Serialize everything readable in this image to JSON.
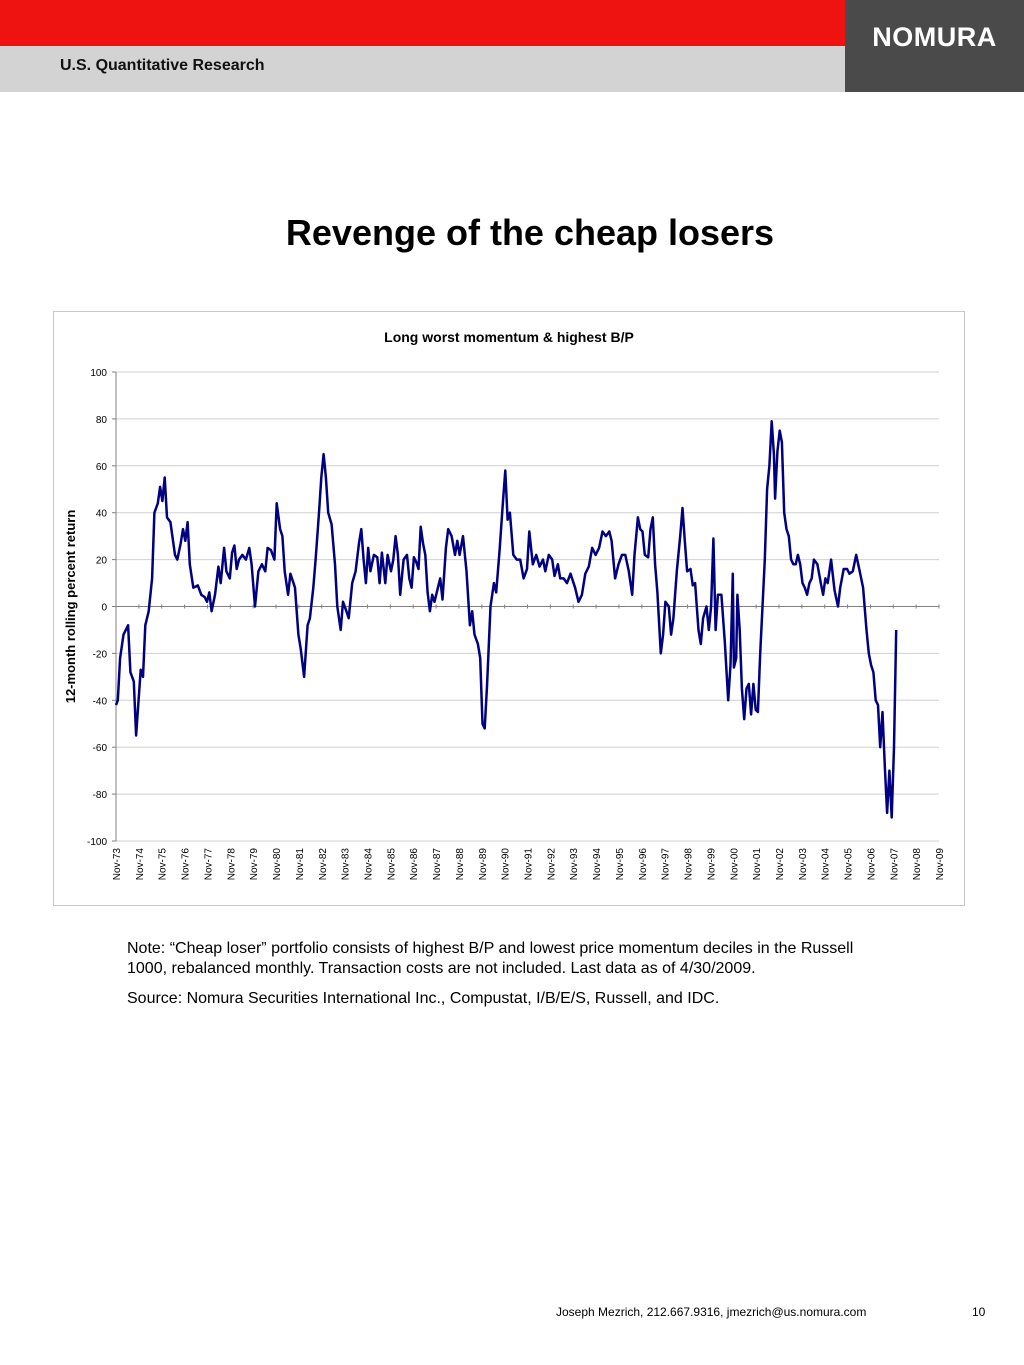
{
  "header": {
    "department": "U.S. Quantitative Research",
    "logo": "NOMURA",
    "colors": {
      "red": "#ee1310",
      "grey": "#d3d3d3",
      "logo_bg": "#4a4a4a"
    }
  },
  "page_title": "Revenge of the cheap losers",
  "chart_data": {
    "type": "line",
    "title": "Long worst momentum & highest B/P",
    "xlabel": "",
    "ylabel": "12-month rolling percent return",
    "ylim": [
      -100,
      100
    ],
    "yticks": [
      100,
      80,
      60,
      40,
      20,
      0,
      -20,
      -40,
      -60,
      -80,
      -100
    ],
    "grid": true,
    "legend": "none",
    "line_color": "#000080",
    "categories": [
      "Nov-73",
      "Nov-74",
      "Nov-75",
      "Nov-76",
      "Nov-77",
      "Nov-78",
      "Nov-79",
      "Nov-80",
      "Nov-81",
      "Nov-82",
      "Nov-83",
      "Nov-84",
      "Nov-85",
      "Nov-86",
      "Nov-87",
      "Nov-88",
      "Nov-89",
      "Nov-90",
      "Nov-91",
      "Nov-92",
      "Nov-93",
      "Nov-94",
      "Nov-95",
      "Nov-96",
      "Nov-97",
      "Nov-98",
      "Nov-99",
      "Nov-00",
      "Nov-01",
      "Nov-02",
      "Nov-03",
      "Nov-04",
      "Nov-05",
      "Nov-06",
      "Nov-07",
      "Nov-08",
      "Nov-09"
    ],
    "series": [
      {
        "name": "",
        "points": [
          [
            1973.92,
            -42
          ],
          [
            1974.0,
            -40
          ],
          [
            1974.1,
            -22
          ],
          [
            1974.25,
            -12
          ],
          [
            1974.45,
            -8
          ],
          [
            1974.55,
            -28
          ],
          [
            1974.7,
            -32
          ],
          [
            1974.8,
            -55
          ],
          [
            1975.0,
            -27
          ],
          [
            1975.1,
            -30
          ],
          [
            1975.2,
            -8
          ],
          [
            1975.35,
            -2
          ],
          [
            1975.5,
            12
          ],
          [
            1975.6,
            40
          ],
          [
            1975.75,
            44
          ],
          [
            1975.85,
            51
          ],
          [
            1975.95,
            45
          ],
          [
            1976.05,
            55
          ],
          [
            1976.15,
            38
          ],
          [
            1976.3,
            36
          ],
          [
            1976.5,
            22
          ],
          [
            1976.6,
            20
          ],
          [
            1976.75,
            27
          ],
          [
            1976.85,
            33
          ],
          [
            1976.95,
            28
          ],
          [
            1977.05,
            36
          ],
          [
            1977.15,
            18
          ],
          [
            1977.3,
            8
          ],
          [
            1977.5,
            9
          ],
          [
            1977.65,
            5
          ],
          [
            1977.8,
            4
          ],
          [
            1977.9,
            2
          ],
          [
            1978.0,
            6
          ],
          [
            1978.1,
            -2
          ],
          [
            1978.25,
            5
          ],
          [
            1978.4,
            17
          ],
          [
            1978.5,
            10
          ],
          [
            1978.65,
            25
          ],
          [
            1978.75,
            15
          ],
          [
            1978.9,
            12
          ],
          [
            1979.0,
            23
          ],
          [
            1979.1,
            26
          ],
          [
            1979.2,
            16
          ],
          [
            1979.3,
            20
          ],
          [
            1979.45,
            22
          ],
          [
            1979.6,
            20
          ],
          [
            1979.75,
            25
          ],
          [
            1979.85,
            18
          ],
          [
            1980.0,
            0
          ],
          [
            1980.15,
            15
          ],
          [
            1980.3,
            18
          ],
          [
            1980.45,
            15
          ],
          [
            1980.55,
            25
          ],
          [
            1980.7,
            24
          ],
          [
            1980.85,
            20
          ],
          [
            1980.95,
            44
          ],
          [
            1981.1,
            33
          ],
          [
            1981.2,
            30
          ],
          [
            1981.3,
            15
          ],
          [
            1981.45,
            5
          ],
          [
            1981.55,
            14
          ],
          [
            1981.75,
            8
          ],
          [
            1981.9,
            -12
          ],
          [
            1982.0,
            -18
          ],
          [
            1982.15,
            -30
          ],
          [
            1982.3,
            -8
          ],
          [
            1982.4,
            -5
          ],
          [
            1982.55,
            8
          ],
          [
            1982.65,
            20
          ],
          [
            1982.8,
            40
          ],
          [
            1982.9,
            55
          ],
          [
            1983.0,
            65
          ],
          [
            1983.1,
            55
          ],
          [
            1983.2,
            40
          ],
          [
            1983.35,
            35
          ],
          [
            1983.5,
            18
          ],
          [
            1983.6,
            0
          ],
          [
            1983.75,
            -10
          ],
          [
            1983.85,
            2
          ],
          [
            1984.0,
            -2
          ],
          [
            1984.1,
            -5
          ],
          [
            1984.25,
            10
          ],
          [
            1984.4,
            15
          ],
          [
            1984.55,
            27
          ],
          [
            1984.65,
            33
          ],
          [
            1984.75,
            20
          ],
          [
            1984.85,
            10
          ],
          [
            1984.95,
            25
          ],
          [
            1985.05,
            15
          ],
          [
            1985.2,
            22
          ],
          [
            1985.35,
            21
          ],
          [
            1985.45,
            10
          ],
          [
            1985.55,
            23
          ],
          [
            1985.7,
            10
          ],
          [
            1985.8,
            22
          ],
          [
            1985.95,
            15
          ],
          [
            1986.05,
            20
          ],
          [
            1986.15,
            30
          ],
          [
            1986.25,
            22
          ],
          [
            1986.35,
            5
          ],
          [
            1986.5,
            20
          ],
          [
            1986.65,
            22
          ],
          [
            1986.75,
            12
          ],
          [
            1986.85,
            8
          ],
          [
            1986.95,
            21
          ],
          [
            1987.05,
            19
          ],
          [
            1987.15,
            16
          ],
          [
            1987.25,
            34
          ],
          [
            1987.35,
            27
          ],
          [
            1987.45,
            22
          ],
          [
            1987.55,
            6
          ],
          [
            1987.65,
            -2
          ],
          [
            1987.75,
            5
          ],
          [
            1987.85,
            2
          ],
          [
            1988.0,
            8
          ],
          [
            1988.1,
            12
          ],
          [
            1988.2,
            3
          ],
          [
            1988.35,
            25
          ],
          [
            1988.45,
            33
          ],
          [
            1988.6,
            30
          ],
          [
            1988.75,
            22
          ],
          [
            1988.85,
            28
          ],
          [
            1988.95,
            22
          ],
          [
            1989.1,
            30
          ],
          [
            1989.25,
            15
          ],
          [
            1989.4,
            -8
          ],
          [
            1989.5,
            -2
          ],
          [
            1989.6,
            -12
          ],
          [
            1989.75,
            -16
          ],
          [
            1989.85,
            -22
          ],
          [
            1989.95,
            -50
          ],
          [
            1990.05,
            -52
          ],
          [
            1990.15,
            -34
          ],
          [
            1990.3,
            0
          ],
          [
            1990.45,
            10
          ],
          [
            1990.55,
            6
          ],
          [
            1990.7,
            24
          ],
          [
            1990.85,
            45
          ],
          [
            1990.95,
            58
          ],
          [
            1991.05,
            37
          ],
          [
            1991.15,
            40
          ],
          [
            1991.3,
            22
          ],
          [
            1991.45,
            20
          ],
          [
            1991.6,
            20
          ],
          [
            1991.75,
            12
          ],
          [
            1991.9,
            16
          ],
          [
            1992.0,
            32
          ],
          [
            1992.15,
            18
          ],
          [
            1992.3,
            22
          ],
          [
            1992.45,
            17
          ],
          [
            1992.6,
            20
          ],
          [
            1992.7,
            15
          ],
          [
            1992.85,
            22
          ],
          [
            1993.0,
            20
          ],
          [
            1993.1,
            13
          ],
          [
            1993.25,
            18
          ],
          [
            1993.35,
            12
          ],
          [
            1993.5,
            12
          ],
          [
            1993.65,
            10
          ],
          [
            1993.8,
            14
          ],
          [
            1994.0,
            8
          ],
          [
            1994.15,
            2
          ],
          [
            1994.3,
            5
          ],
          [
            1994.45,
            14
          ],
          [
            1994.6,
            17
          ],
          [
            1994.75,
            25
          ],
          [
            1994.9,
            22
          ],
          [
            1995.05,
            25
          ],
          [
            1995.2,
            32
          ],
          [
            1995.35,
            30
          ],
          [
            1995.5,
            32
          ],
          [
            1995.6,
            28
          ],
          [
            1995.75,
            12
          ],
          [
            1995.9,
            18
          ],
          [
            1996.05,
            22
          ],
          [
            1996.2,
            22
          ],
          [
            1996.35,
            15
          ],
          [
            1996.5,
            5
          ],
          [
            1996.6,
            22
          ],
          [
            1996.75,
            38
          ],
          [
            1996.85,
            33
          ],
          [
            1996.95,
            32
          ],
          [
            1997.05,
            22
          ],
          [
            1997.2,
            21
          ],
          [
            1997.3,
            33
          ],
          [
            1997.4,
            38
          ],
          [
            1997.5,
            18
          ],
          [
            1997.6,
            6
          ],
          [
            1997.75,
            -20
          ],
          [
            1997.85,
            -12
          ],
          [
            1997.95,
            2
          ],
          [
            1998.1,
            0
          ],
          [
            1998.2,
            -12
          ],
          [
            1998.3,
            -5
          ],
          [
            1998.45,
            15
          ],
          [
            1998.6,
            30
          ],
          [
            1998.7,
            42
          ],
          [
            1998.8,
            28
          ],
          [
            1998.9,
            15
          ],
          [
            1999.05,
            16
          ],
          [
            1999.15,
            9
          ],
          [
            1999.25,
            10
          ],
          [
            1999.4,
            -10
          ],
          [
            1999.5,
            -16
          ],
          [
            1999.6,
            -5
          ],
          [
            1999.75,
            0
          ],
          [
            1999.85,
            -10
          ],
          [
            1999.95,
            0
          ],
          [
            2000.05,
            29
          ],
          [
            2000.15,
            -10
          ],
          [
            2000.25,
            5
          ],
          [
            2000.4,
            5
          ],
          [
            2000.55,
            -15
          ],
          [
            2000.7,
            -40
          ],
          [
            2000.8,
            -25
          ],
          [
            2000.9,
            14
          ],
          [
            2000.95,
            -26
          ],
          [
            2001.05,
            -22
          ],
          [
            2001.1,
            5
          ],
          [
            2001.2,
            -10
          ],
          [
            2001.3,
            -35
          ],
          [
            2001.4,
            -48
          ],
          [
            2001.5,
            -35
          ],
          [
            2001.6,
            -33
          ],
          [
            2001.7,
            -46
          ],
          [
            2001.8,
            -33
          ],
          [
            2001.9,
            -44
          ],
          [
            2002.0,
            -45
          ],
          [
            2002.1,
            -20
          ],
          [
            2002.2,
            0
          ],
          [
            2002.3,
            20
          ],
          [
            2002.4,
            50
          ],
          [
            2002.5,
            60
          ],
          [
            2002.6,
            79
          ],
          [
            2002.7,
            65
          ],
          [
            2002.75,
            46
          ],
          [
            2002.85,
            66
          ],
          [
            2002.95,
            75
          ],
          [
            2003.05,
            70
          ],
          [
            2003.15,
            40
          ],
          [
            2003.25,
            33
          ],
          [
            2003.35,
            30
          ],
          [
            2003.45,
            20
          ],
          [
            2003.55,
            18
          ],
          [
            2003.65,
            18
          ],
          [
            2003.75,
            22
          ],
          [
            2003.85,
            18
          ],
          [
            2003.95,
            10
          ],
          [
            2004.05,
            8
          ],
          [
            2004.15,
            5
          ],
          [
            2004.25,
            10
          ],
          [
            2004.35,
            12
          ],
          [
            2004.45,
            20
          ],
          [
            2004.6,
            18
          ],
          [
            2004.75,
            10
          ],
          [
            2004.85,
            5
          ],
          [
            2004.95,
            12
          ],
          [
            2005.05,
            10
          ],
          [
            2005.2,
            20
          ],
          [
            2005.35,
            7
          ],
          [
            2005.5,
            0
          ],
          [
            2005.6,
            8
          ],
          [
            2005.75,
            16
          ],
          [
            2005.9,
            16
          ],
          [
            2006.0,
            14
          ],
          [
            2006.15,
            15
          ],
          [
            2006.3,
            22
          ],
          [
            2006.45,
            15
          ],
          [
            2006.6,
            8
          ],
          [
            2006.75,
            -10
          ],
          [
            2006.85,
            -20
          ],
          [
            2006.95,
            -25
          ],
          [
            2007.05,
            -28
          ],
          [
            2007.15,
            -40
          ],
          [
            2007.25,
            -42
          ],
          [
            2007.35,
            -60
          ],
          [
            2007.45,
            -45
          ],
          [
            2007.55,
            -68
          ],
          [
            2007.65,
            -88
          ],
          [
            2007.75,
            -70
          ],
          [
            2007.85,
            -90
          ],
          [
            2007.95,
            -60
          ],
          [
            2008.05,
            -10
          ]
        ]
      }
    ]
  },
  "notes": {
    "note": "Note: “Cheap loser” portfolio consists of highest B/P and lowest price momentum deciles in the Russell 1000, rebalanced monthly. Transaction costs are not included. Last data as of 4/30/2009.",
    "source": "Source: Nomura Securities International Inc., Compustat, I/B/E/S, Russell, and IDC."
  },
  "footer": {
    "contact": "Joseph Mezrich, 212.667.9316, jmezrich@us.nomura.com",
    "page_number": "10"
  }
}
